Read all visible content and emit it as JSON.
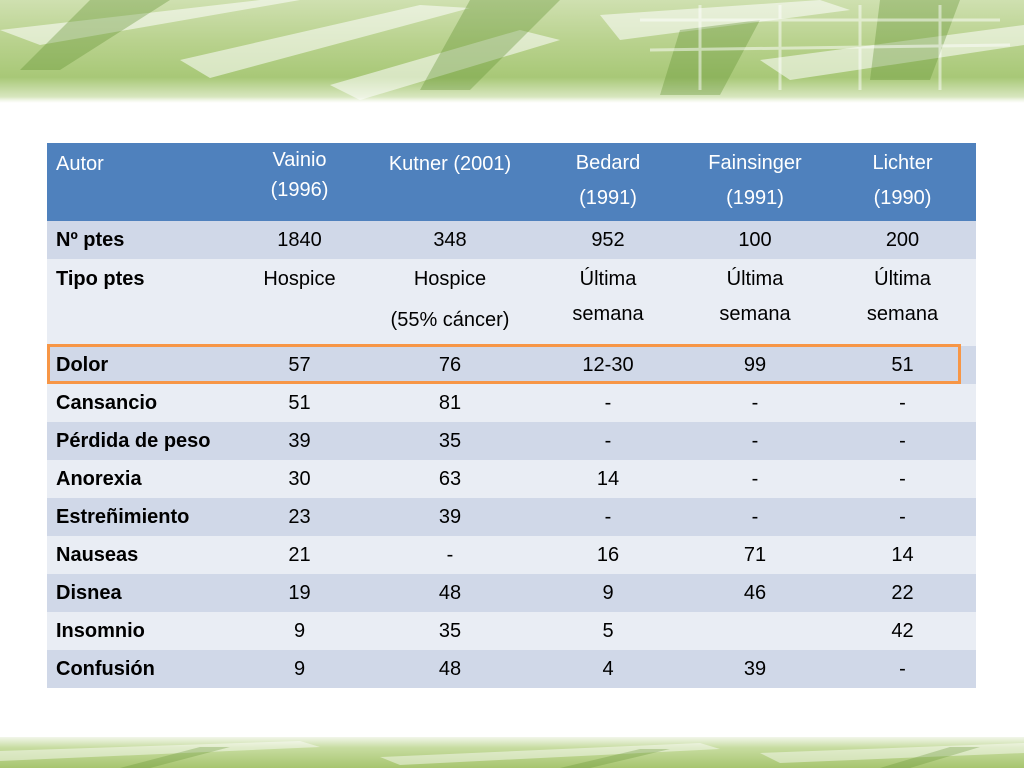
{
  "table": {
    "headers": [
      [
        "Autor"
      ],
      [
        "Vainio",
        "(1996)"
      ],
      [
        "Kutner (2001)"
      ],
      [
        "Bedard",
        "(1991)"
      ],
      [
        "Fainsinger",
        "(1991)"
      ],
      [
        "Lichter",
        "(1990)"
      ]
    ],
    "rows": [
      {
        "label": "Nº ptes",
        "cells": [
          [
            "1840"
          ],
          [
            "348"
          ],
          [
            "952"
          ],
          [
            "100"
          ],
          [
            "200"
          ]
        ]
      },
      {
        "label": "Tipo ptes",
        "cells": [
          [
            "Hospice"
          ],
          [
            "Hospice",
            "(55% cáncer)"
          ],
          [
            "Última",
            "semana"
          ],
          [
            "Última",
            "semana"
          ],
          [
            "Última",
            "semana"
          ]
        ]
      },
      {
        "label": "Dolor",
        "cells": [
          [
            "57"
          ],
          [
            "76"
          ],
          [
            "12-30"
          ],
          [
            "99"
          ],
          [
            "51"
          ]
        ]
      },
      {
        "label": "Cansancio",
        "cells": [
          [
            "51"
          ],
          [
            "81"
          ],
          [
            "-"
          ],
          [
            "-"
          ],
          [
            "-"
          ]
        ]
      },
      {
        "label": "Pérdida de peso",
        "cells": [
          [
            "39"
          ],
          [
            "35"
          ],
          [
            "-"
          ],
          [
            "-"
          ],
          [
            "-"
          ]
        ]
      },
      {
        "label": "Anorexia",
        "cells": [
          [
            "30"
          ],
          [
            "63"
          ],
          [
            "14"
          ],
          [
            "-"
          ],
          [
            "-"
          ]
        ]
      },
      {
        "label": "Estreñimiento",
        "cells": [
          [
            "23"
          ],
          [
            "39"
          ],
          [
            "-"
          ],
          [
            "-"
          ],
          [
            "-"
          ]
        ]
      },
      {
        "label": "Nauseas",
        "cells": [
          [
            "21"
          ],
          [
            "-"
          ],
          [
            "16"
          ],
          [
            "71"
          ],
          [
            "14"
          ]
        ]
      },
      {
        "label": "Disnea",
        "cells": [
          [
            "19"
          ],
          [
            "48"
          ],
          [
            "9"
          ],
          [
            "46"
          ],
          [
            "22"
          ]
        ]
      },
      {
        "label": "Insomnio",
        "cells": [
          [
            "9"
          ],
          [
            "35"
          ],
          [
            "5"
          ],
          [
            ""
          ],
          [
            "42"
          ]
        ]
      },
      {
        "label": "Confusión",
        "cells": [
          [
            "9"
          ],
          [
            "48"
          ],
          [
            "4"
          ],
          [
            "39"
          ],
          [
            "-"
          ]
        ]
      }
    ],
    "highlighted_row": "Dolor"
  },
  "colors": {
    "header_bg": "#4f81bd",
    "row_odd": "#d0d8e8",
    "row_even": "#e9edf4",
    "highlight_border": "#f79646",
    "banner_green": "#a8c877"
  }
}
